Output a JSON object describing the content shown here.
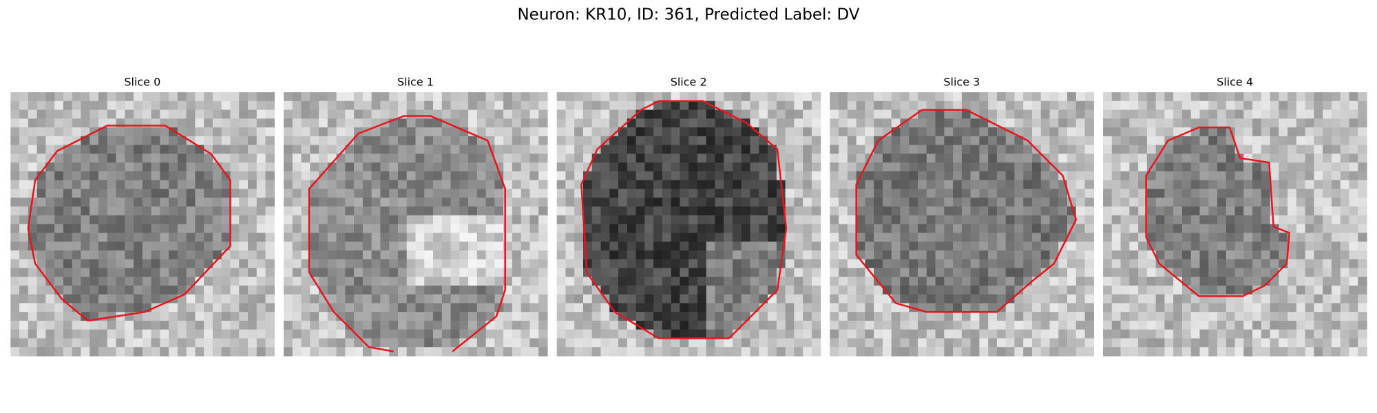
{
  "title": "Neuron: KR10, ID: 361, Predicted Label: DV",
  "panels": [
    {
      "title": "Slice 0"
    },
    {
      "title": "Slice 1"
    },
    {
      "title": "Slice 2"
    },
    {
      "title": "Slice 3"
    },
    {
      "title": "Slice 4"
    }
  ]
}
